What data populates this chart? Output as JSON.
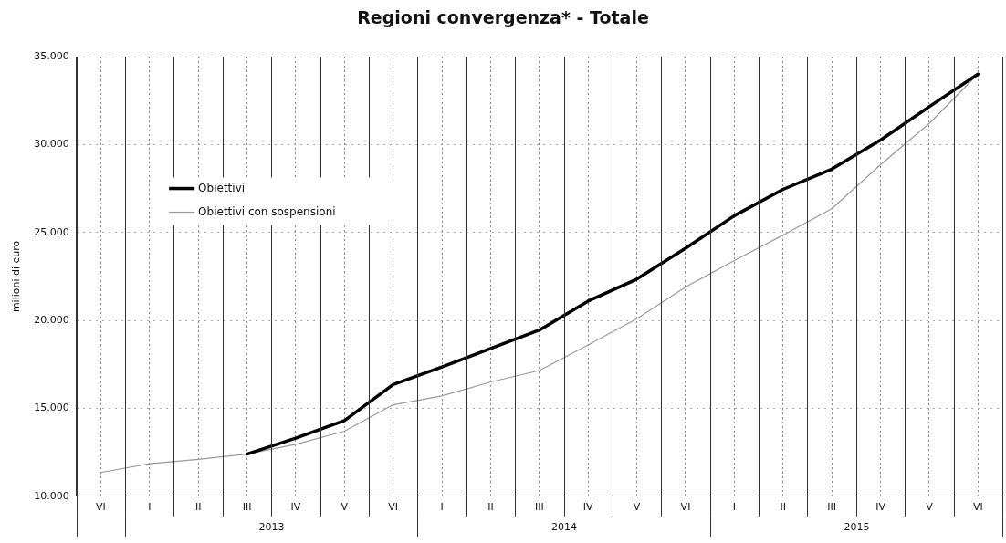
{
  "chart_data": {
    "type": "line",
    "title": "Regioni convergenza* - Totale",
    "ylabel": "milioni di euro",
    "categories": [
      "VI",
      "I",
      "II",
      "III",
      "IV",
      "V",
      "VI",
      "I",
      "II",
      "III",
      "IV",
      "V",
      "VI",
      "I",
      "II",
      "III",
      "IV",
      "V",
      "VI"
    ],
    "annotations": [
      "2013",
      "2014",
      "2015"
    ],
    "series": [
      {
        "name": "Obiettivi",
        "color": "#000000",
        "values": [
          null,
          null,
          null,
          12400,
          13300,
          14300,
          16350,
          17350,
          18400,
          19450,
          21100,
          22350,
          24100,
          25950,
          27450,
          28600,
          30250,
          32150,
          34000
        ]
      },
      {
        "name": "Obiettivi con sospensioni",
        "color": "#9a9a9a",
        "values": [
          11350,
          11850,
          12100,
          12400,
          12950,
          13700,
          15200,
          15700,
          16500,
          17150,
          18600,
          20100,
          21900,
          23400,
          24850,
          26350,
          28850,
          31200,
          34000
        ]
      }
    ],
    "ylim": [
      10000,
      35000
    ],
    "yticks": [
      {
        "value": 10000,
        "label": "10.000"
      },
      {
        "value": 15000,
        "label": "15.000"
      },
      {
        "value": 20000,
        "label": "20.000"
      },
      {
        "value": 25000,
        "label": "25.000"
      },
      {
        "value": 30000,
        "label": "30.000"
      },
      {
        "value": 35000,
        "label": "35.000"
      }
    ],
    "grid": true,
    "legend": "top left"
  }
}
